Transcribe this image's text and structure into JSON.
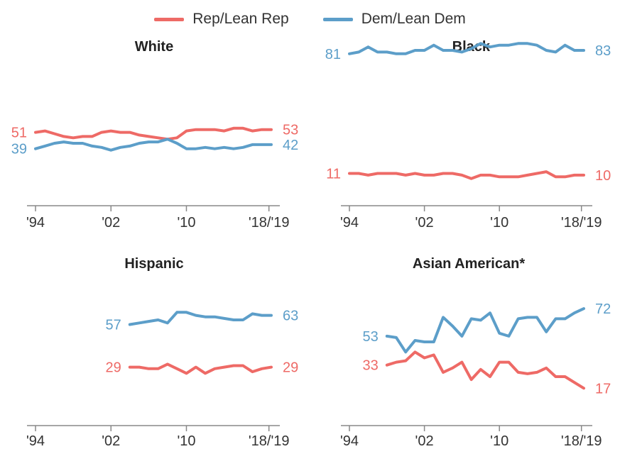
{
  "legend": [
    {
      "label": "Rep/Lean Rep",
      "color": "#ee6a66"
    },
    {
      "label": "Dem/Lean Dem",
      "color": "#5c9ec9"
    }
  ],
  "colors": {
    "rep": "#ee6a66",
    "dem": "#5c9ec9",
    "axis": "#888888",
    "tick_text": "#333333"
  },
  "chart_data": [
    {
      "type": "line",
      "title": "White",
      "x_ticks": [
        "'94",
        "'02",
        "'10",
        "'18/'19"
      ],
      "xlim": [
        1994,
        2019
      ],
      "ylim": [
        0,
        100
      ],
      "series": [
        {
          "name": "Rep/Lean Rep",
          "start_label": "51",
          "end_label": "53",
          "x": [
            1994,
            1995,
            1996,
            1997,
            1998,
            1999,
            2000,
            2001,
            2002,
            2003,
            2004,
            2005,
            2006,
            2007,
            2008,
            2009,
            2010,
            2011,
            2012,
            2013,
            2014,
            2015,
            2016,
            2017,
            2018,
            2019
          ],
          "y": [
            51,
            52,
            50,
            48,
            47,
            48,
            48,
            51,
            52,
            51,
            51,
            49,
            48,
            47,
            46,
            47,
            52,
            53,
            53,
            53,
            52,
            54,
            54,
            52,
            53,
            53
          ]
        },
        {
          "name": "Dem/Lean Dem",
          "start_label": "39",
          "end_label": "42",
          "x": [
            1994,
            1995,
            1996,
            1997,
            1998,
            1999,
            2000,
            2001,
            2002,
            2003,
            2004,
            2005,
            2006,
            2007,
            2008,
            2009,
            2010,
            2011,
            2012,
            2013,
            2014,
            2015,
            2016,
            2017,
            2018,
            2019
          ],
          "y": [
            39,
            41,
            43,
            44,
            43,
            43,
            41,
            40,
            38,
            40,
            41,
            43,
            44,
            44,
            46,
            43,
            39,
            39,
            40,
            39,
            40,
            39,
            40,
            42,
            42,
            42
          ]
        }
      ]
    },
    {
      "type": "line",
      "title": "Black",
      "x_ticks": [
        "'94",
        "'02",
        "'10",
        "'18/'19"
      ],
      "xlim": [
        1994,
        2019
      ],
      "ylim": [
        0,
        100
      ],
      "series": [
        {
          "name": "Rep/Lean Rep",
          "start_label": "11",
          "end_label": "10",
          "x": [
            1994,
            1995,
            1996,
            1997,
            1998,
            1999,
            2000,
            2001,
            2002,
            2003,
            2004,
            2005,
            2006,
            2007,
            2008,
            2009,
            2010,
            2011,
            2012,
            2013,
            2014,
            2015,
            2016,
            2017,
            2018,
            2019
          ],
          "y": [
            11,
            11,
            10,
            11,
            11,
            11,
            10,
            11,
            10,
            10,
            11,
            11,
            10,
            8,
            10,
            10,
            9,
            9,
            9,
            10,
            11,
            12,
            9,
            9,
            10,
            10
          ]
        },
        {
          "name": "Dem/Lean Dem",
          "start_label": "81",
          "end_label": "83",
          "x": [
            1994,
            1995,
            1996,
            1997,
            1998,
            1999,
            2000,
            2001,
            2002,
            2003,
            2004,
            2005,
            2006,
            2007,
            2008,
            2009,
            2010,
            2011,
            2012,
            2013,
            2014,
            2015,
            2016,
            2017,
            2018,
            2019
          ],
          "y": [
            81,
            82,
            85,
            82,
            82,
            81,
            81,
            83,
            83,
            86,
            83,
            83,
            82,
            84,
            87,
            85,
            86,
            86,
            87,
            87,
            86,
            83,
            82,
            86,
            83,
            83
          ]
        }
      ]
    },
    {
      "type": "line",
      "title": "Hispanic",
      "x_ticks": [
        "'94",
        "'02",
        "'10",
        "'18/'19"
      ],
      "xlim": [
        1994,
        2019
      ],
      "ylim": [
        0,
        100
      ],
      "series": [
        {
          "name": "Rep/Lean Rep",
          "start_label": "29",
          "end_label": "29",
          "x": [
            2004,
            2005,
            2006,
            2007,
            2008,
            2009,
            2010,
            2011,
            2012,
            2013,
            2014,
            2015,
            2016,
            2017,
            2018,
            2019
          ],
          "y": [
            29,
            29,
            28,
            28,
            31,
            28,
            25,
            29,
            25,
            28,
            29,
            30,
            30,
            26,
            28,
            29
          ]
        },
        {
          "name": "Dem/Lean Dem",
          "start_label": "57",
          "end_label": "63",
          "x": [
            2004,
            2005,
            2006,
            2007,
            2008,
            2009,
            2010,
            2011,
            2012,
            2013,
            2014,
            2015,
            2016,
            2017,
            2018,
            2019
          ],
          "y": [
            57,
            58,
            59,
            60,
            58,
            65,
            65,
            63,
            62,
            62,
            61,
            60,
            60,
            64,
            63,
            63
          ]
        }
      ]
    },
    {
      "type": "line",
      "title": "Asian American*",
      "x_ticks": [
        "'94",
        "'02",
        "'10",
        "'18/'19"
      ],
      "xlim": [
        1994,
        2019
      ],
      "ylim": [
        0,
        100
      ],
      "series": [
        {
          "name": "Rep/Lean Rep",
          "start_label": "33",
          "end_label": "17",
          "x": [
            1998,
            1999,
            2000,
            2001,
            2002,
            2003,
            2004,
            2005,
            2006,
            2007,
            2008,
            2009,
            2010,
            2011,
            2012,
            2013,
            2014,
            2015,
            2016,
            2017,
            2018,
            2019
          ],
          "y": [
            33,
            35,
            36,
            42,
            38,
            40,
            28,
            31,
            35,
            23,
            30,
            25,
            35,
            35,
            28,
            27,
            28,
            31,
            25,
            25,
            21,
            17
          ]
        },
        {
          "name": "Dem/Lean Dem",
          "start_label": "53",
          "end_label": "72",
          "x": [
            1998,
            1999,
            2000,
            2001,
            2002,
            2003,
            2004,
            2005,
            2006,
            2007,
            2008,
            2009,
            2010,
            2011,
            2012,
            2013,
            2014,
            2015,
            2016,
            2017,
            2018,
            2019
          ],
          "y": [
            53,
            52,
            42,
            50,
            49,
            49,
            66,
            60,
            53,
            65,
            64,
            69,
            55,
            53,
            65,
            66,
            66,
            56,
            65,
            65,
            69,
            72
          ]
        }
      ]
    }
  ]
}
